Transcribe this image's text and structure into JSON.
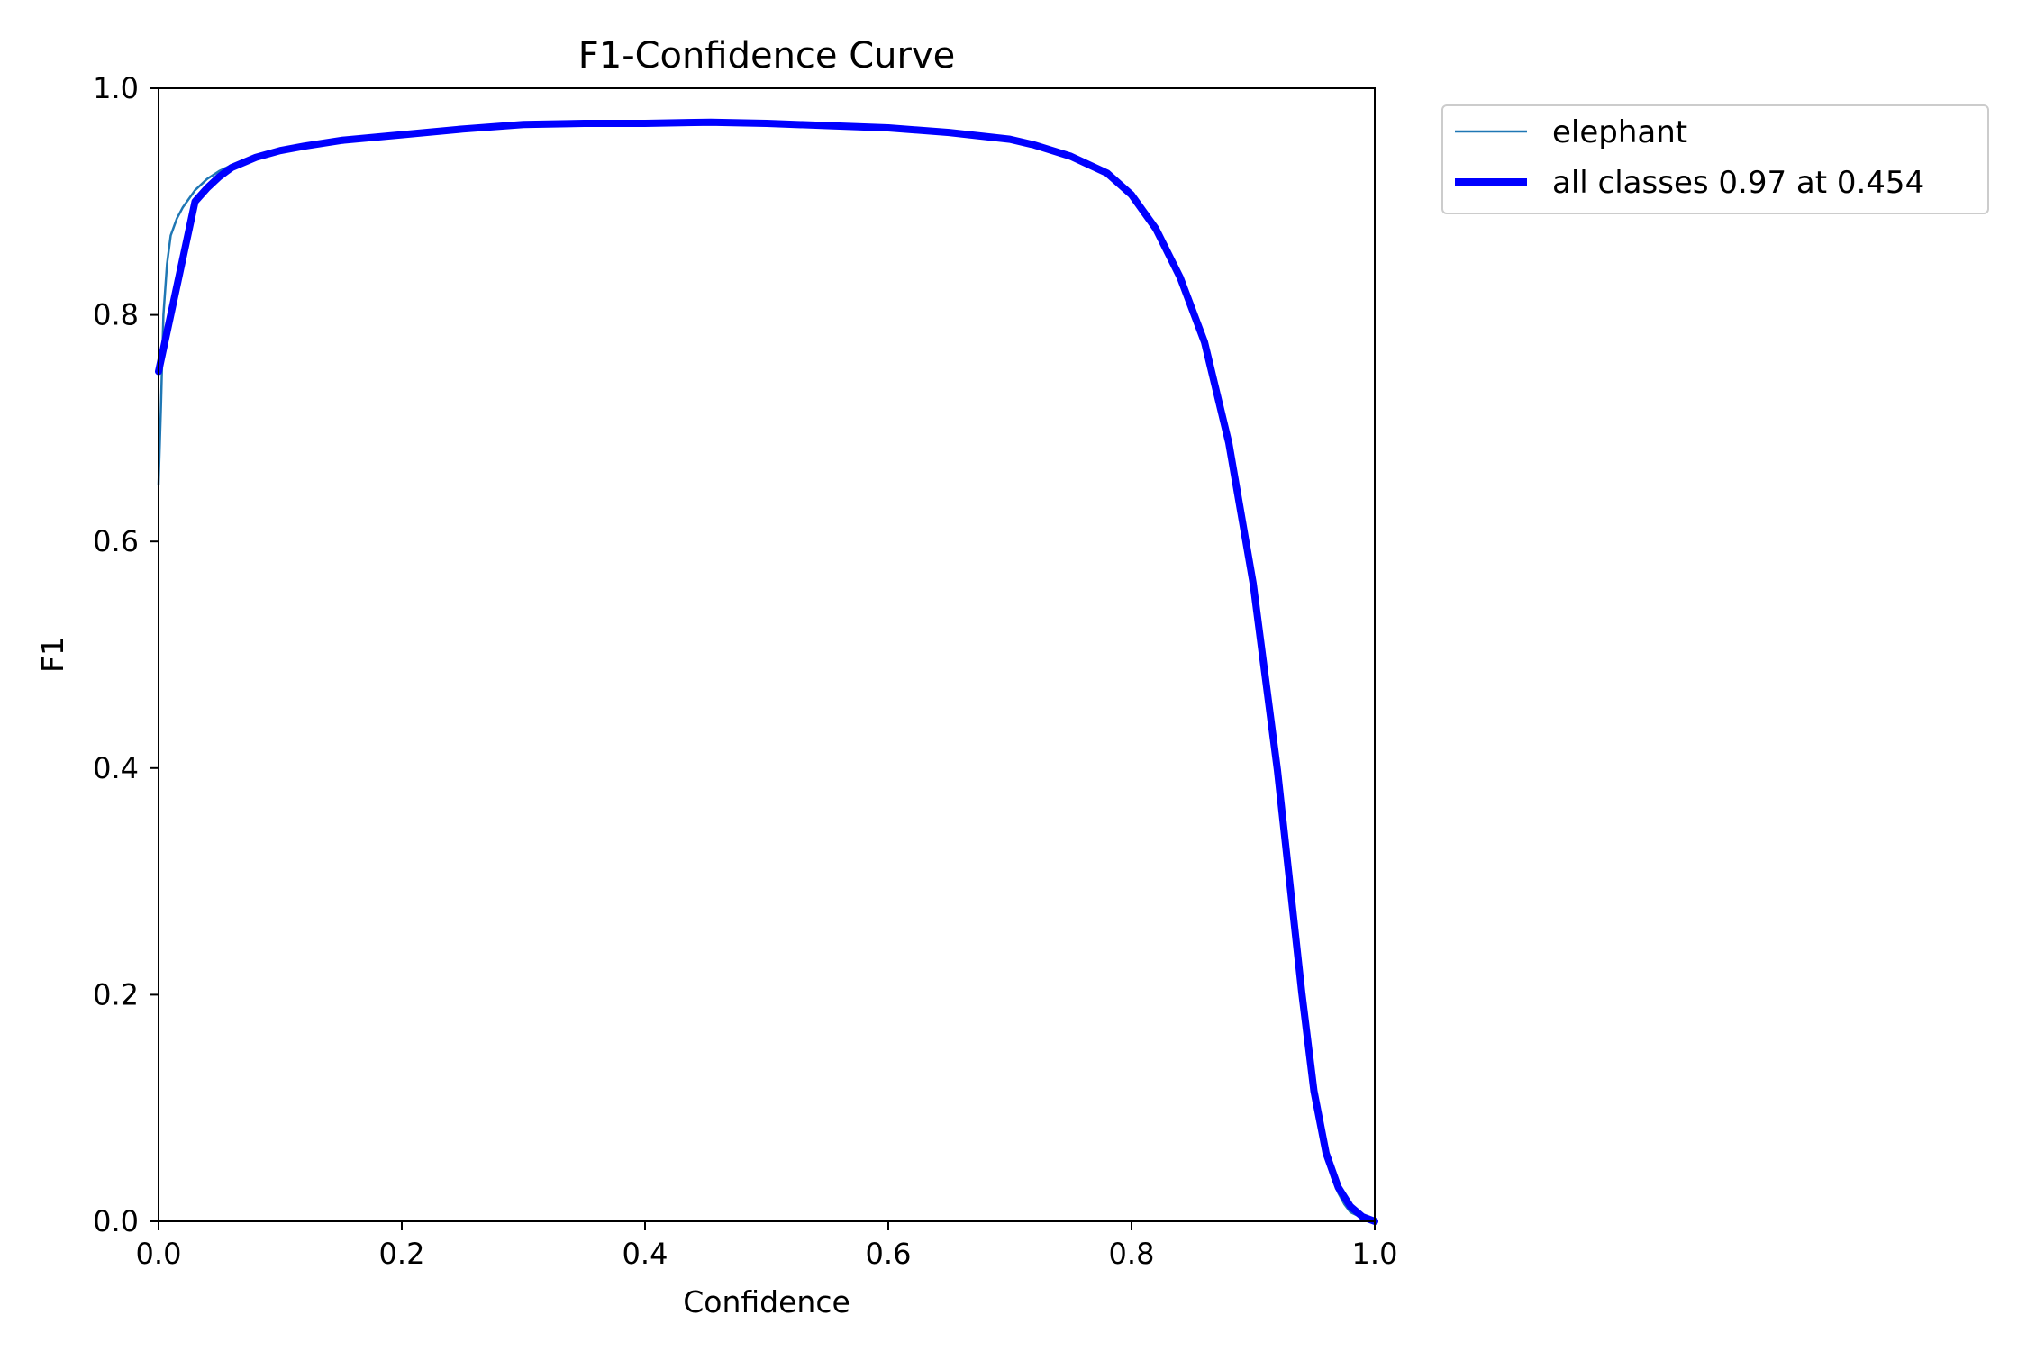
{
  "chart_data": {
    "type": "line",
    "title": "F1-Confidence Curve",
    "xlabel": "Confidence",
    "ylabel": "F1",
    "xlim": [
      0,
      1
    ],
    "ylim": [
      0,
      1
    ],
    "xticks": [
      "0.0",
      "0.2",
      "0.4",
      "0.6",
      "0.8",
      "1.0"
    ],
    "yticks": [
      "0.0",
      "0.2",
      "0.4",
      "0.6",
      "0.8",
      "1.0"
    ],
    "grid": false,
    "legend_position": "outside-top-right",
    "series": [
      {
        "name": "elephant",
        "color": "#1f77b4",
        "style": "thin",
        "x": [
          0.0,
          0.002,
          0.004,
          0.007,
          0.01,
          0.015,
          0.02,
          0.03,
          0.04,
          0.05,
          0.06,
          0.08,
          0.1,
          0.12,
          0.15,
          0.2,
          0.25,
          0.3,
          0.35,
          0.4,
          0.454,
          0.5,
          0.55,
          0.6,
          0.65,
          0.7,
          0.72,
          0.75,
          0.78,
          0.8,
          0.82,
          0.84,
          0.86,
          0.88,
          0.9,
          0.92,
          0.94,
          0.95,
          0.955,
          0.96,
          0.965,
          0.97,
          0.975,
          0.98,
          0.99,
          1.0
        ],
        "y": [
          0.65,
          0.72,
          0.8,
          0.845,
          0.87,
          0.885,
          0.895,
          0.91,
          0.92,
          0.927,
          0.932,
          0.94,
          0.945,
          0.949,
          0.954,
          0.959,
          0.964,
          0.968,
          0.969,
          0.969,
          0.97,
          0.969,
          0.967,
          0.965,
          0.961,
          0.955,
          0.95,
          0.94,
          0.925,
          0.906,
          0.876,
          0.833,
          0.776,
          0.687,
          0.563,
          0.398,
          0.202,
          0.115,
          0.085,
          0.055,
          0.038,
          0.025,
          0.015,
          0.008,
          0.003,
          0.0
        ]
      },
      {
        "name": "all classes 0.97 at 0.454",
        "color": "#0000ff",
        "style": "thick",
        "x": [
          0.0,
          0.01,
          0.02,
          0.03,
          0.04,
          0.05,
          0.06,
          0.08,
          0.1,
          0.12,
          0.15,
          0.2,
          0.25,
          0.3,
          0.35,
          0.4,
          0.454,
          0.5,
          0.55,
          0.6,
          0.65,
          0.7,
          0.72,
          0.75,
          0.78,
          0.8,
          0.82,
          0.84,
          0.86,
          0.88,
          0.9,
          0.92,
          0.94,
          0.95,
          0.96,
          0.97,
          0.98,
          0.99,
          1.0
        ],
        "y": [
          0.75,
          0.8,
          0.85,
          0.9,
          0.912,
          0.922,
          0.93,
          0.939,
          0.945,
          0.949,
          0.954,
          0.959,
          0.964,
          0.968,
          0.969,
          0.969,
          0.97,
          0.969,
          0.967,
          0.965,
          0.961,
          0.955,
          0.95,
          0.94,
          0.925,
          0.906,
          0.876,
          0.833,
          0.776,
          0.687,
          0.563,
          0.398,
          0.202,
          0.115,
          0.06,
          0.03,
          0.013,
          0.004,
          0.0
        ]
      }
    ]
  }
}
